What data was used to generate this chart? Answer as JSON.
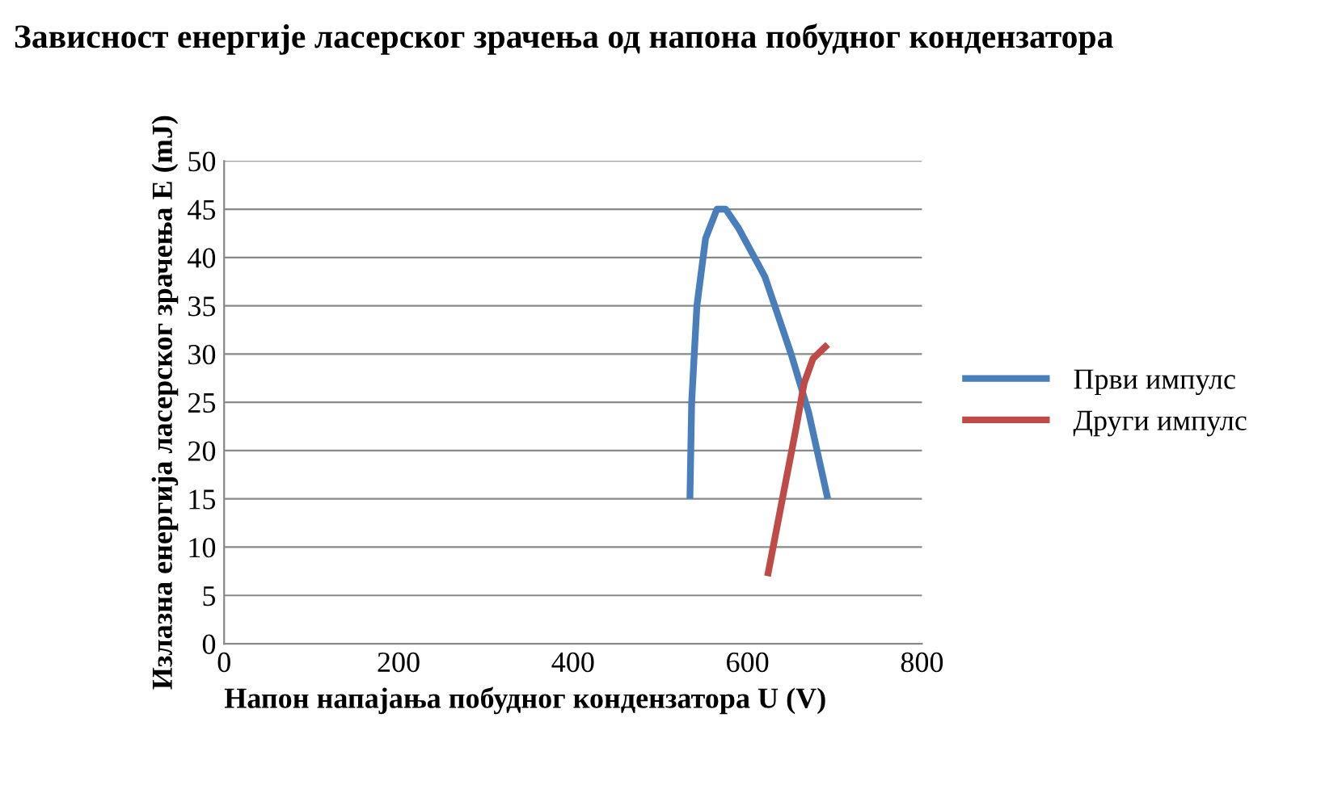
{
  "chart_data": {
    "type": "line",
    "title": "Зависност енергије ласерског зрачења од напона побудног кондензатора",
    "xlabel": "Напон напајања побудног кондензатора U (V)",
    "ylabel": "Излазна енергија ласерског зрачења E (mJ)",
    "series": [
      {
        "name": "Први импулс",
        "color": "#4a7ebb",
        "x": [
          534,
          536,
          542,
          552,
          565,
          575,
          590,
          620,
          650,
          670,
          692
        ],
        "values": [
          15,
          25,
          35,
          42,
          45,
          45,
          43,
          38,
          30,
          24,
          15
        ]
      },
      {
        "name": "Други импулс",
        "color": "#be4b48",
        "x": [
          623,
          640,
          655,
          665,
          675,
          692
        ],
        "values": [
          7,
          15,
          22,
          27,
          29.5,
          31
        ]
      }
    ],
    "xlim": [
      0,
      800
    ],
    "xticks": [
      0,
      200,
      400,
      600,
      800
    ],
    "ylim": [
      0,
      50
    ],
    "yticks": [
      0,
      5,
      10,
      15,
      20,
      25,
      30,
      35,
      40,
      45,
      50
    ],
    "grid": "y",
    "legend": "right",
    "marker": "none",
    "line_style": "solid"
  }
}
